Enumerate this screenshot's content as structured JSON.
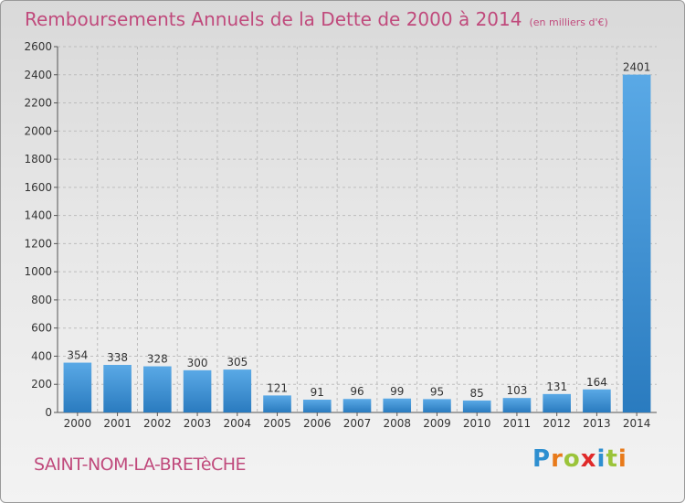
{
  "header": {
    "title": "Remboursements Annuels de la Dette de 2000 à 2014",
    "unit": "(en milliers d'€)"
  },
  "footer": {
    "commune": "SAINT-NOM-LA-BRETèCHE",
    "brand_letters": [
      "P",
      "r",
      "o",
      "x",
      "i",
      "t",
      "i"
    ],
    "brand_colors": [
      "#2e8fd0",
      "#e87a1a",
      "#9bc43a",
      "#e02a2a",
      "#2e8fd0",
      "#9bc43a",
      "#e87a1a"
    ]
  },
  "chart_data": {
    "type": "bar",
    "title": "Remboursements Annuels de la Dette de 2000 à 2014",
    "xlabel": "",
    "ylabel": "",
    "categories": [
      "2000",
      "2001",
      "2002",
      "2003",
      "2004",
      "2005",
      "2006",
      "2007",
      "2008",
      "2009",
      "2010",
      "2011",
      "2012",
      "2013",
      "2014"
    ],
    "values": [
      354,
      338,
      328,
      300,
      305,
      121,
      91,
      96,
      99,
      95,
      85,
      103,
      131,
      164,
      2401
    ],
    "ylim": [
      0,
      2600
    ],
    "yticks": [
      0,
      200,
      400,
      600,
      800,
      1000,
      1200,
      1400,
      1600,
      1800,
      2000,
      2200,
      2400,
      2600
    ],
    "grid": true,
    "bar_color_top": "#5aa9e6",
    "bar_color_bottom": "#2a7bbf"
  }
}
